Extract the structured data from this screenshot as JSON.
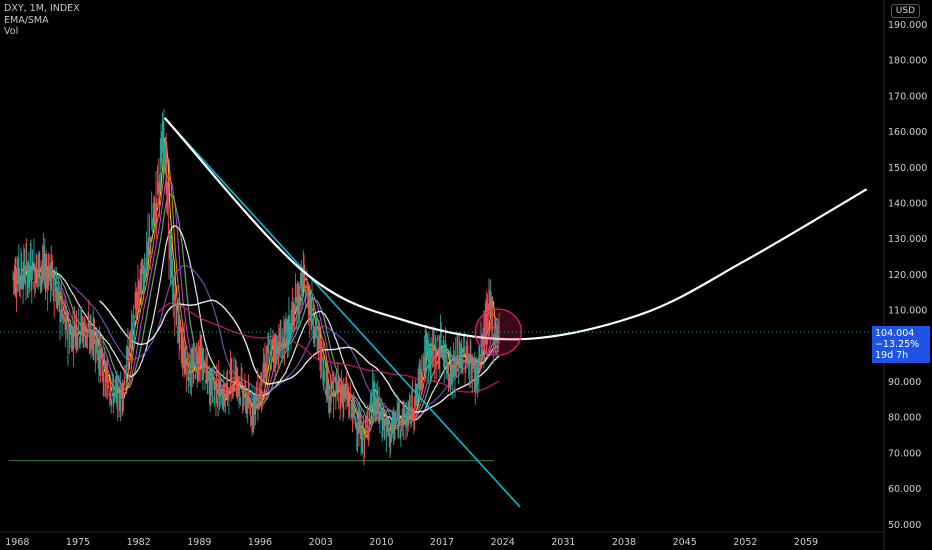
{
  "legend": {
    "symbol_line": "DXY, 1M, INDEX",
    "indicator": "EMA/SMA",
    "volume": "Vol"
  },
  "currency_button": "USD",
  "price_tag": {
    "price": "104.004",
    "change": "−13.25%",
    "countdown": "19d 7h"
  },
  "colors": {
    "background": "#000000",
    "price_tag": "#1e53e5",
    "trend_line": "#00bcd4",
    "parabola": "#ffffff",
    "circle": "#e91e63",
    "support_line": "#4caf50"
  },
  "chart_data": {
    "type": "line",
    "title": "DXY",
    "xlabel": "",
    "ylabel": "",
    "x_ticks": [
      "1968",
      "1975",
      "1982",
      "1989",
      "1996",
      "2003",
      "2010",
      "2017",
      "2024",
      "2031",
      "2038",
      "2045",
      "2052",
      "2059"
    ],
    "y_ticks": [
      "50.000",
      "60.000",
      "70.000",
      "80.000",
      "90.000",
      "100.000",
      "110.000",
      "120.000",
      "130.000",
      "140.000",
      "150.000",
      "160.000",
      "170.000",
      "180.000",
      "190.000"
    ],
    "xlim": [
      1966,
      2068
    ],
    "ylim": [
      48,
      197
    ],
    "grid": false,
    "series": [
      {
        "values": [
          [
            1967.5,
            120
          ],
          [
            1969,
            121
          ],
          [
            1970.5,
            122
          ],
          [
            1972,
            120
          ],
          [
            1973,
            110
          ],
          [
            1974,
            103
          ],
          [
            1975,
            106
          ],
          [
            1976,
            104
          ],
          [
            1977,
            102
          ],
          [
            1978,
            92
          ],
          [
            1979,
            87
          ],
          [
            1980,
            86
          ],
          [
            1981,
            100
          ],
          [
            1982,
            115
          ],
          [
            1983,
            125
          ],
          [
            1984,
            140
          ],
          [
            1985,
            160
          ],
          [
            1985.5,
            130
          ],
          [
            1986,
            115
          ],
          [
            1987,
            100
          ],
          [
            1988,
            92
          ],
          [
            1989,
            98
          ],
          [
            1990,
            90
          ],
          [
            1991,
            88
          ],
          [
            1992,
            86
          ],
          [
            1993,
            93
          ],
          [
            1994,
            87
          ],
          [
            1995,
            82
          ],
          [
            1996,
            87
          ],
          [
            1997,
            98
          ],
          [
            1998,
            100
          ],
          [
            1999,
            102
          ],
          [
            2000,
            110
          ],
          [
            2001,
            118
          ],
          [
            2002,
            110
          ],
          [
            2003,
            98
          ],
          [
            2004,
            87
          ],
          [
            2005,
            88
          ],
          [
            2006,
            86
          ],
          [
            2007,
            80
          ],
          [
            2008,
            73
          ],
          [
            2009,
            86
          ],
          [
            2010,
            80
          ],
          [
            2011,
            75
          ],
          [
            2012,
            80
          ],
          [
            2013,
            80
          ],
          [
            2014,
            85
          ],
          [
            2015,
            98
          ],
          [
            2016,
            98
          ],
          [
            2017,
            100
          ],
          [
            2018,
            92
          ],
          [
            2019,
            97
          ],
          [
            2020,
            97
          ],
          [
            2021,
            91
          ],
          [
            2022,
            105
          ],
          [
            2022.7,
            112
          ],
          [
            2023,
            102
          ],
          [
            2023.6,
            104
          ]
        ]
      }
    ],
    "annotations": {
      "descending_trend_line": [
        [
          1985,
          164
        ],
        [
          2026,
          55
        ]
      ],
      "parabolic_arc": [
        [
          1985,
          164
        ],
        [
          2001,
          121
        ],
        [
          2013,
          107
        ],
        [
          2026,
          102
        ],
        [
          2040,
          109
        ],
        [
          2052,
          124
        ],
        [
          2066,
          144
        ]
      ],
      "highlight_circle_center": [
        2023.5,
        104
      ],
      "support_line_level": 68,
      "support_line_range": [
        1967,
        2023
      ]
    },
    "last_price": 104.004
  }
}
